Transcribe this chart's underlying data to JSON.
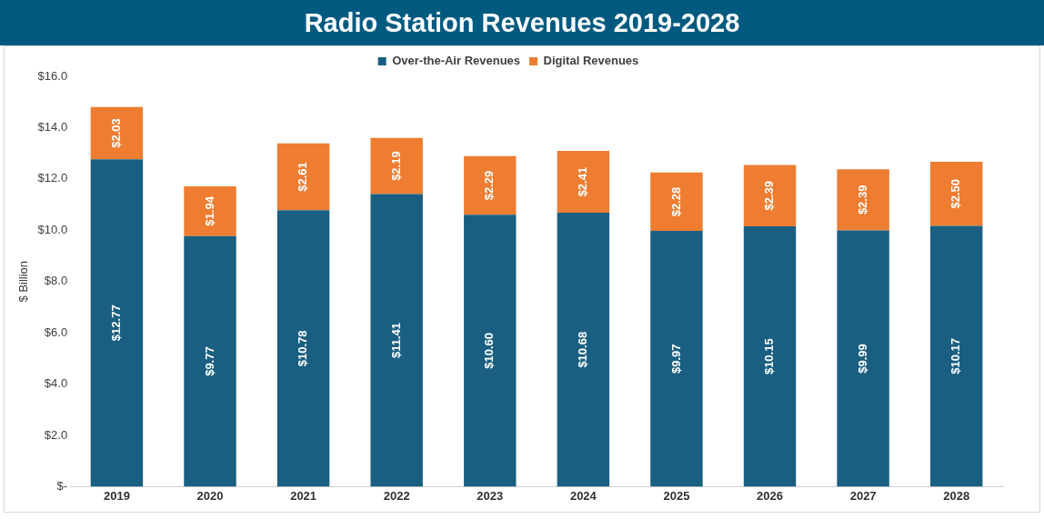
{
  "chart_data": {
    "type": "bar",
    "title": "Radio Station Revenues 2019-2028",
    "ylabel": "$ Billion",
    "categories": [
      "2019",
      "2020",
      "2021",
      "2022",
      "2023",
      "2024",
      "2025",
      "2026",
      "2027",
      "2028"
    ],
    "stacked": true,
    "legend": "top",
    "grid": false,
    "ylim": [
      0,
      16
    ],
    "yticks": [
      {
        "value": 0,
        "label": "$-"
      },
      {
        "value": 2,
        "label": "$2.0"
      },
      {
        "value": 4,
        "label": "$4.0"
      },
      {
        "value": 6,
        "label": "$6.0"
      },
      {
        "value": 8,
        "label": "$8.0"
      },
      {
        "value": 10,
        "label": "$10.0"
      },
      {
        "value": 12,
        "label": "$12.0"
      },
      {
        "value": 14,
        "label": "$14.0"
      },
      {
        "value": 16,
        "label": "$16.0"
      }
    ],
    "series": [
      {
        "name": "Over-the-Air Revenues",
        "color": "#1a5f82",
        "values": [
          12.77,
          9.77,
          10.78,
          11.41,
          10.6,
          10.68,
          9.97,
          10.15,
          9.99,
          10.17
        ],
        "value_labels": [
          "$12.77",
          "$9.77",
          "$10.78",
          "$11.41",
          "$10.60",
          "$10.68",
          "$9.97",
          "$10.15",
          "$9.99",
          "$10.17"
        ]
      },
      {
        "name": "Digital Revenues",
        "color": "#ee7d31",
        "values": [
          2.03,
          1.94,
          2.61,
          2.19,
          2.29,
          2.41,
          2.28,
          2.39,
          2.39,
          2.5
        ],
        "value_labels": [
          "$2.03",
          "$1.94",
          "$2.61",
          "$2.19",
          "$2.29",
          "$2.41",
          "$2.28",
          "$2.39",
          "$2.39",
          "$2.50"
        ]
      }
    ]
  }
}
